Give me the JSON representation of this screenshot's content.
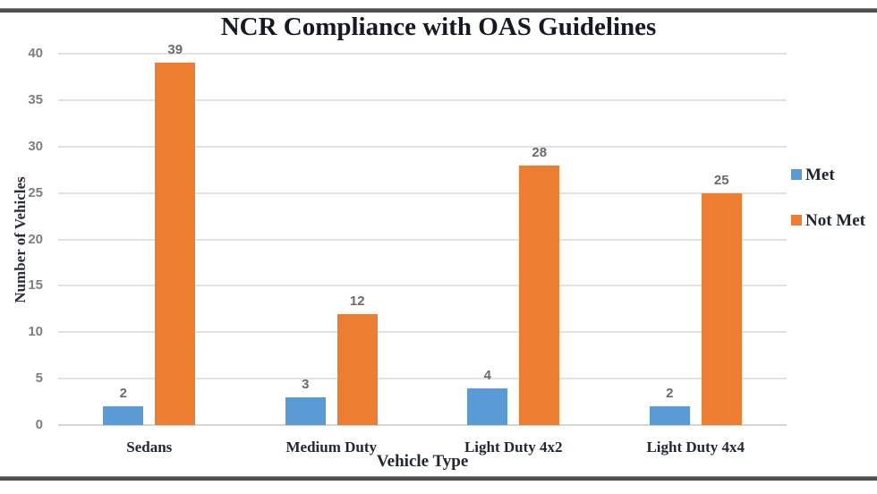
{
  "chart_data": {
    "type": "bar",
    "title": "NCR Compliance with OAS Guidelines",
    "xlabel": "Vehicle Type",
    "ylabel": "Number of Vehicles",
    "categories": [
      "Sedans",
      "Medium Duty",
      "Light Duty 4x2",
      "Light Duty 4x4"
    ],
    "series": [
      {
        "name": "Met",
        "color": "#5B9BD5",
        "values": [
          2,
          3,
          4,
          2
        ]
      },
      {
        "name": "Not Met",
        "color": "#ED7D31",
        "values": [
          39,
          12,
          28,
          25
        ]
      }
    ],
    "ylim": [
      0,
      40
    ],
    "ytick_step": 5,
    "yticks": [
      0,
      5,
      10,
      15,
      20,
      25,
      30,
      35,
      40
    ],
    "grid": true,
    "data_labels": true,
    "legend_position": "right",
    "colors": {
      "grid": "#e2e2e2",
      "frame_rule": "#4f4f4f",
      "tick_text": "#7f7f7f",
      "data_label_text": "#6a6a6a",
      "title_text": "#141924"
    }
  }
}
